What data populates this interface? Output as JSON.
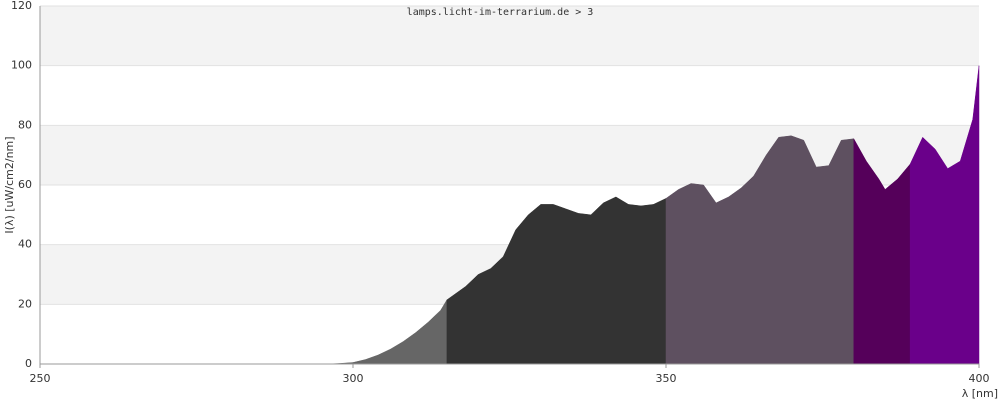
{
  "chart_data": {
    "type": "area",
    "title": "lamps.licht-im-terrarium.de > 3",
    "ylabel": "I(λ)  [uW/cm2/nm]",
    "xlabel": "λ [nm]",
    "xlim": [
      250,
      400
    ],
    "xticks": [
      250,
      300,
      350,
      400
    ],
    "ylim": [
      0,
      120
    ],
    "yticks": [
      0,
      20,
      40,
      60,
      80,
      100,
      120
    ],
    "grid": true,
    "series": [
      {
        "color": "#666666",
        "x": [
          250,
          296,
          298,
          300,
          302,
          304,
          306,
          308,
          310,
          312,
          314,
          315
        ],
        "values": [
          0,
          0,
          0.2,
          0.5,
          1.5,
          3,
          5,
          7.5,
          10.5,
          14,
          18,
          21.5
        ]
      },
      {
        "color": "#333333",
        "x": [
          315,
          316,
          318,
          320,
          322,
          324,
          326,
          328,
          330,
          332,
          334,
          336,
          338,
          340,
          342,
          344,
          346,
          348,
          350
        ],
        "values": [
          21.5,
          23,
          26,
          30,
          32,
          36,
          45,
          50,
          53.5,
          53.5,
          52,
          50.5,
          50,
          54,
          56,
          53.5,
          53,
          53.5,
          55.5
        ]
      },
      {
        "color": "#5e5060",
        "x": [
          350,
          352,
          354,
          356,
          358,
          360,
          362,
          364,
          366,
          368,
          370,
          372,
          374,
          376,
          378,
          380
        ],
        "values": [
          55.5,
          58.5,
          60.5,
          60,
          54,
          56,
          59,
          63,
          70,
          76,
          76.5,
          75,
          66,
          66.5,
          75,
          75.5
        ]
      },
      {
        "color": "#55005a",
        "x": [
          380,
          382,
          384,
          385,
          387,
          389
        ],
        "values": [
          75.5,
          68,
          62,
          58.5,
          62,
          67
        ]
      },
      {
        "color": "#6a008a",
        "x": [
          389,
          391,
          393,
          395,
          397,
          399,
          400
        ],
        "values": [
          67,
          76,
          72,
          65.5,
          68,
          82,
          100
        ]
      }
    ]
  }
}
